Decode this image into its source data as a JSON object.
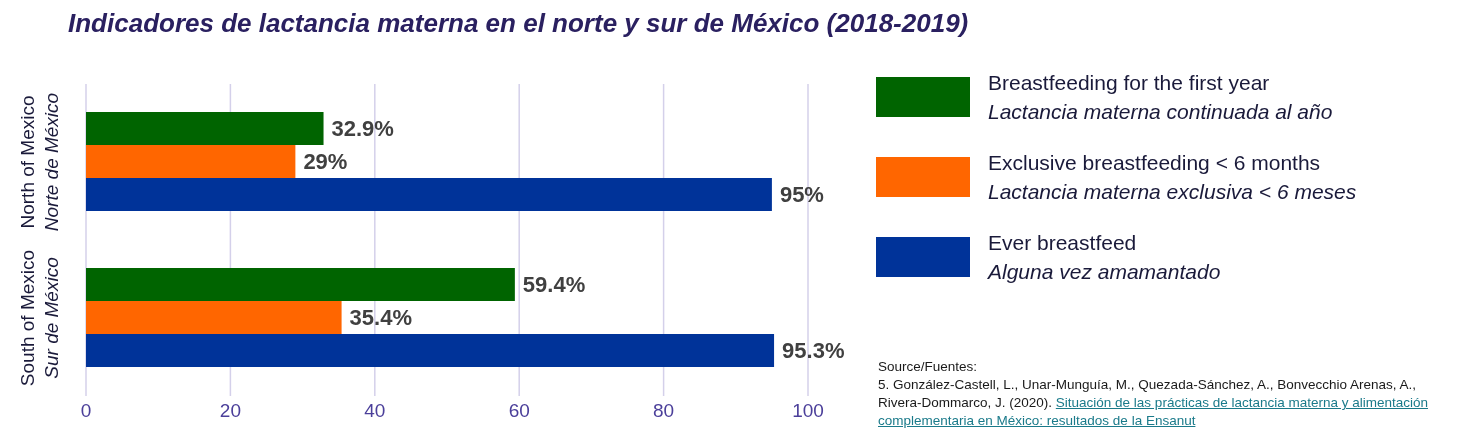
{
  "chart_data": {
    "type": "bar",
    "orientation": "horizontal",
    "title": "Indicadores de lactancia materna en el norte y sur de México (2018-2019)",
    "categories": [
      "North of Mexico\nNorte de México",
      "South of Mexico\nSur de México"
    ],
    "series": [
      {
        "name": "Breastfeeding for the first year\nLactancia materna continuada al año",
        "color": "#006400",
        "values": [
          32.9,
          59.4
        ],
        "value_labels": [
          "32.9%",
          "59.4%"
        ]
      },
      {
        "name": "Exclusive breastfeeding < 6 months\nLactancia materna exclusiva < 6 meses",
        "color": "#ff6600",
        "values": [
          29,
          35.4
        ],
        "value_labels": [
          "29%",
          "35.4%"
        ]
      },
      {
        "name": "Ever breastfeed\nAlguna vez amamantado",
        "color": "#003399",
        "values": [
          95,
          95.3
        ],
        "value_labels": [
          "95%",
          "95.3%"
        ]
      }
    ],
    "xlim": [
      0,
      100
    ],
    "xticks": [
      0,
      20,
      40,
      60,
      80,
      100
    ],
    "grid": "x",
    "legend": "right",
    "annotations": [
      "Source/Fuentes:",
      "5. González-Castell, L., Unar-Munguía, M., Quezada-Sánchez, A., Bonvecchio Arenas, A., Rivera-Dommarco, J. (2020).",
      "Situación de las prácticas de lactancia materna y alimentación complementaria en México: resultados de la Ensanut"
    ]
  }
}
